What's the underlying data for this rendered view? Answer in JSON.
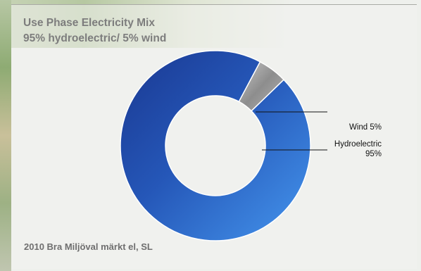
{
  "title": {
    "line1": "Use Phase Electricity Mix",
    "line2": "95% hydroelectric/ 5% wind"
  },
  "source": "2010 Bra Miljöval märkt el, SL",
  "colors": {
    "hydro_dark": "#1d3f9a",
    "hydro_light": "#3f8ee8",
    "wind": "#9a9a9a",
    "title_text": "#7d7d7d"
  },
  "chart_data": {
    "type": "pie",
    "donut": true,
    "slices": [
      {
        "label": "Wind",
        "value": 5,
        "label_text": [
          "Wind 5%"
        ],
        "color": "#9a9a9a"
      },
      {
        "label": "Hydroelectric",
        "value": 95,
        "label_text": [
          "Hydroelectric",
          "95%"
        ],
        "color": "#2a68c9"
      }
    ],
    "legend": "callout labels on right"
  }
}
